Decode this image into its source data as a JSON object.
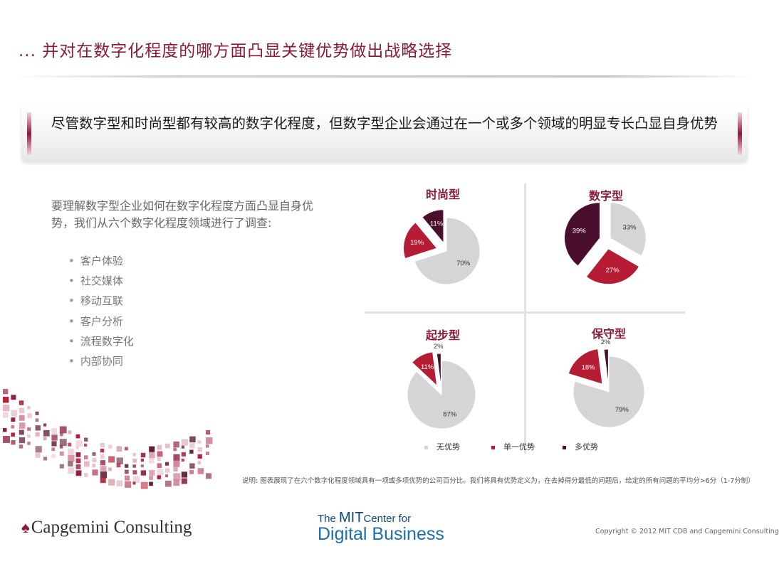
{
  "slide": {
    "title": "... 并对在数字化程度的哪方面凸显关键优势做出战略选择",
    "banner": "尽管数字型和时尚型都有较高的数字化程度，但数字型企业会通过在一个或多个领域的明显专长凸显自身优势",
    "intro": "要理解数字型企业如何在数字化程度方面凸显自身优势，我们从六个数字化程度领域进行了调查:",
    "bullets": [
      "客户体验",
      "社交媒体",
      "移动互联",
      "客户分析",
      "流程数字化",
      "内部协同"
    ],
    "note": "说明: 图表展现了在六个数字化程度领域具有一项或多项优势的公司百分比。我们将具有优势定义为，在去掉得分最低的问题后，给定的所有问题的平均分>6分（1-7分制）",
    "copyright": "Copyright © 2012 MIT CDB and Capgemini Consulting"
  },
  "branding": {
    "capgemini": "Capgemini Consulting",
    "mit_prefix": "The ",
    "mit_mit": "MIT",
    "mit_center": "Center for",
    "mit_digital": "Digital Business"
  },
  "colors": {
    "none": "#d5d4d6",
    "single": "#b61c34",
    "multi": "#4a0f2c",
    "accent": "#8b1a3a"
  },
  "chart_data": [
    {
      "type": "pie",
      "title": "时尚型",
      "categories": [
        "无优势",
        "单一优势",
        "多优势"
      ],
      "values": [
        70,
        19,
        11
      ]
    },
    {
      "type": "pie",
      "title": "数字型",
      "categories": [
        "无优势",
        "单一优势",
        "多优势"
      ],
      "values": [
        33,
        27,
        39
      ]
    },
    {
      "type": "pie",
      "title": "起步型",
      "categories": [
        "无优势",
        "单一优势",
        "多优势"
      ],
      "values": [
        87,
        11,
        2
      ]
    },
    {
      "type": "pie",
      "title": "保守型",
      "categories": [
        "无优势",
        "单一优势",
        "多优势"
      ],
      "values": [
        79,
        18,
        2
      ]
    }
  ],
  "legend": [
    {
      "label": "无优势",
      "key": "none"
    },
    {
      "label": "单一优势",
      "key": "single"
    },
    {
      "label": "多优势",
      "key": "multi"
    }
  ]
}
